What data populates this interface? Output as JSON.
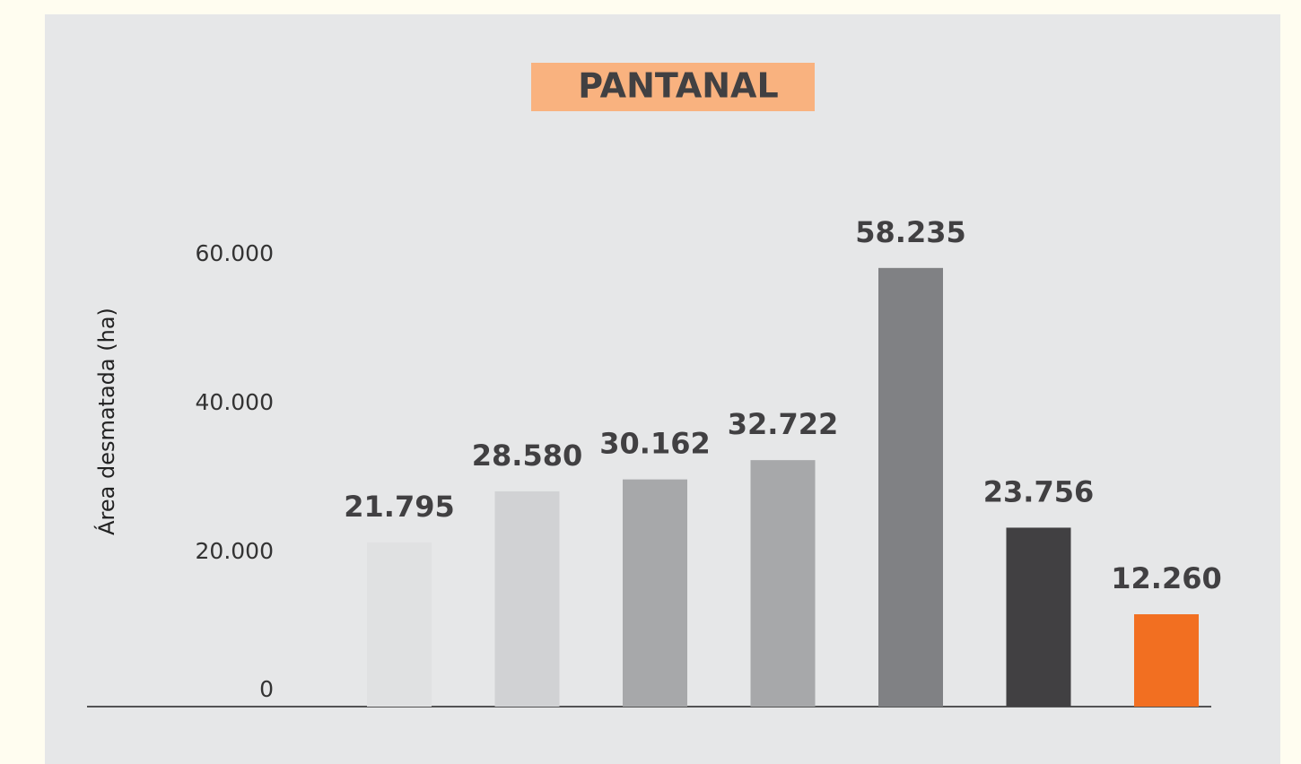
{
  "chart_data": {
    "type": "bar",
    "title": "PANTANAL",
    "ylabel": "Área desmatada (ha)",
    "categories": [
      null,
      null,
      null,
      null,
      null,
      null,
      null
    ],
    "values": [
      21795,
      28580,
      30162,
      32722,
      58235,
      23756,
      12260
    ],
    "value_labels": [
      "21.795",
      "28.580",
      "30.162",
      "32.722",
      "58.235",
      "23.756",
      "12.260"
    ],
    "colors": [
      "#e0e1e2",
      "#d1d2d4",
      "#a7a8aa",
      "#a7a8aa",
      "#808184",
      "#414042",
      "#f26f21"
    ],
    "ylim": [
      0,
      60000
    ],
    "yticks": [
      0,
      {
        "value": 20000,
        "label": "20.000"
      },
      {
        "value": 40000,
        "label": "40.000"
      },
      {
        "value": 60000,
        "label": "60.000"
      }
    ],
    "grid": false
  }
}
